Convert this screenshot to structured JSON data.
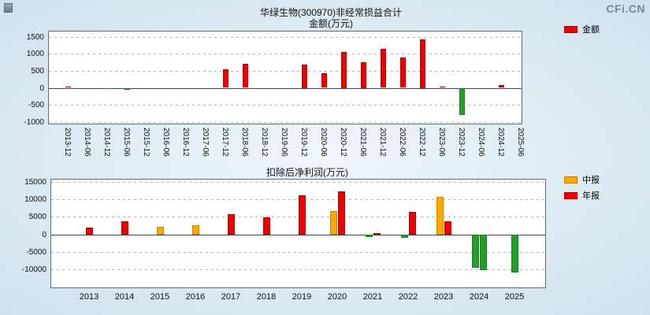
{
  "logo_text": "CFi.CN",
  "charts": [
    {
      "title": "华绿生物(300970)非经常损益合计",
      "subtitle": "金额(万元)",
      "legend": [
        {
          "label": "金额",
          "color": "#ee0000"
        }
      ],
      "chart_data": {
        "type": "bar",
        "categories": [
          "2013-12",
          "2014-06",
          "2014-12",
          "2015-06",
          "2015-12",
          "2016-06",
          "2016-12",
          "2017-06",
          "2017-12",
          "2018-06",
          "2018-12",
          "2019-06",
          "2019-12",
          "2020-06",
          "2020-12",
          "2021-06",
          "2021-12",
          "2022-06",
          "2022-12",
          "2023-06",
          "2023-12",
          "2024-06",
          "2024-12",
          "2025-06"
        ],
        "series": [
          {
            "name": "金额",
            "color": "#ee0000",
            "values": [
              40,
              null,
              -15,
              -45,
              null,
              null,
              null,
              null,
              550,
              700,
              null,
              null,
              680,
              430,
              1050,
              750,
              1150,
              880,
              1430,
              30,
              -800,
              null,
              90,
              null
            ]
          }
        ],
        "negative_color": "#1fa12b",
        "y_ticks": [
          1500,
          1000,
          500,
          0,
          -500,
          -1000
        ],
        "ylim": [
          -1050,
          1650
        ],
        "ylabel": "金额(万元)",
        "grid": "dashed-horizontal",
        "legend_position": "top-right"
      }
    },
    {
      "title": "扣除后净利润(万元)",
      "legend": [
        {
          "label": "中报",
          "color": "#ffa800"
        },
        {
          "label": "年报",
          "color": "#ee0000"
        }
      ],
      "chart_data": {
        "type": "bar",
        "categories": [
          "2013",
          "2014",
          "2015",
          "2016",
          "2017",
          "2018",
          "2019",
          "2020",
          "2021",
          "2022",
          "2023",
          "2024",
          "2025"
        ],
        "series": [
          {
            "name": "中报",
            "color": "#ffa800",
            "values": [
              null,
              null,
              2200,
              2700,
              null,
              null,
              null,
              6700,
              -700,
              -900,
              10800,
              -9600,
              -10900
            ]
          },
          {
            "name": "年报",
            "color": "#ee0000",
            "values": [
              2000,
              3700,
              null,
              null,
              5700,
              4800,
              11300,
              12300,
              400,
              6400,
              3700,
              -10200,
              null
            ]
          }
        ],
        "negative_color": "#1fa12b",
        "y_ticks": [
          15000,
          10000,
          5000,
          0,
          -5000,
          -10000
        ],
        "ylim": [
          -15200,
          15700
        ],
        "grid": "dashed-horizontal",
        "legend_position": "top-right"
      }
    }
  ]
}
